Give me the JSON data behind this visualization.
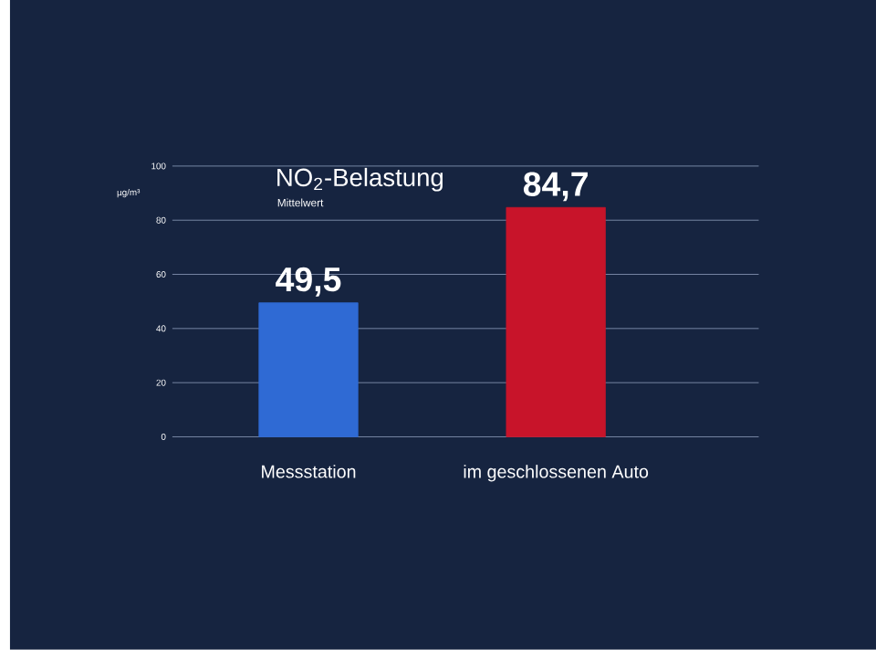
{
  "chart_data": {
    "type": "bar",
    "title": "NO$_{2}$-Belastung",
    "subtitle": "Mittelwert",
    "ylabel": "µg/m³",
    "categories": [
      "Messstation",
      "im geschlossenen Auto"
    ],
    "values": [
      49.5,
      84.7
    ],
    "colors": [
      "#2f6ad4",
      "#c8142a"
    ],
    "value_labels": [
      "49,5",
      "84,7"
    ],
    "ylim": [
      0,
      100
    ],
    "yticks": [
      0,
      20,
      40,
      60,
      80,
      100
    ],
    "grid": "y"
  }
}
